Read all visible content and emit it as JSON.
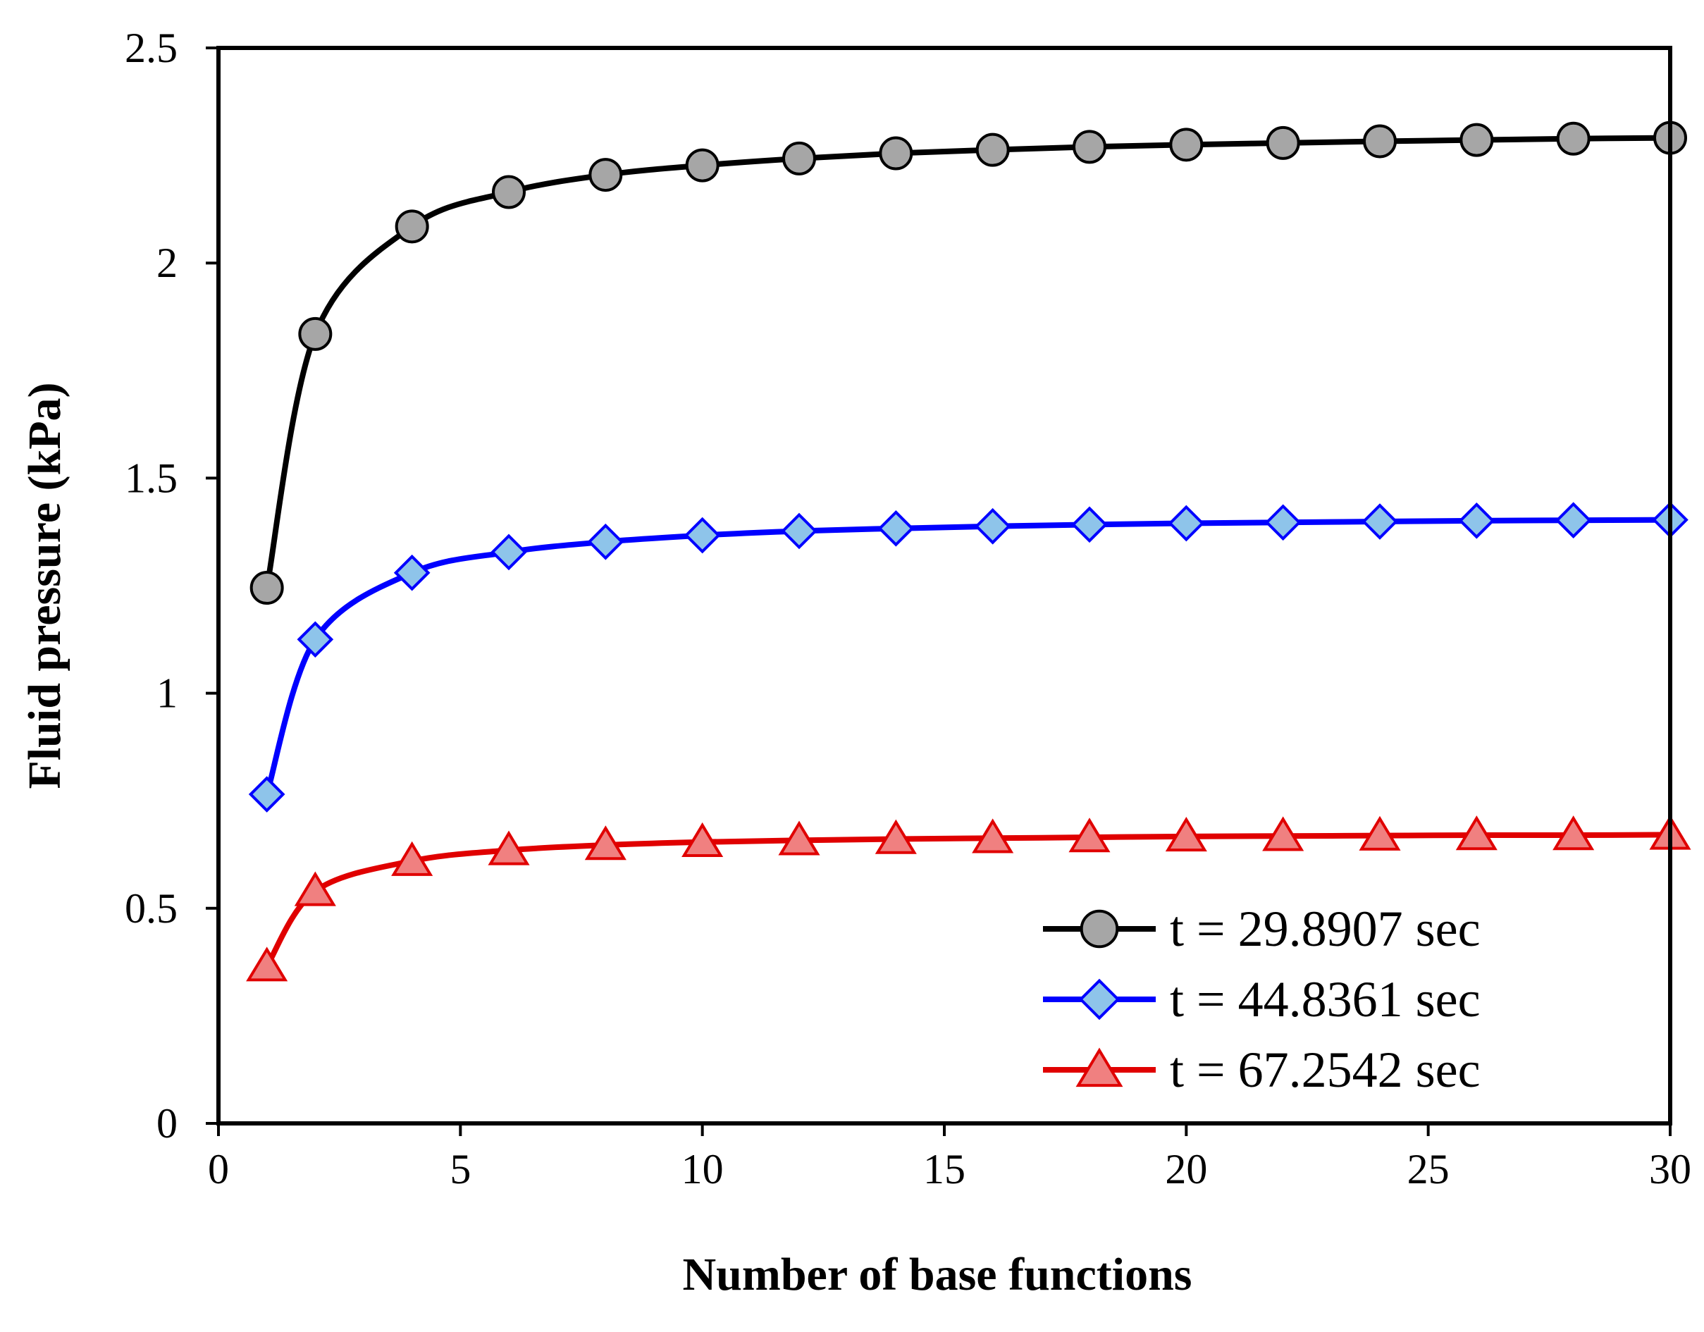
{
  "chart_data": {
    "type": "line",
    "title": "",
    "xlabel": "Number of base functions",
    "ylabel": "Fluid pressure (kPa)",
    "xlim": [
      0,
      30
    ],
    "ylim": [
      0,
      2.5
    ],
    "xticks": [
      0,
      5,
      10,
      15,
      20,
      25,
      30
    ],
    "xtick_labels": [
      "0",
      "5",
      "10",
      "15",
      "20",
      "25",
      "30"
    ],
    "yticks": [
      0,
      0.5,
      1,
      1.5,
      2,
      2.5
    ],
    "ytick_labels": [
      "0",
      "0.5",
      "1",
      "1.5",
      "2",
      "2.5"
    ],
    "grid": false,
    "legend_position": "bottom-right",
    "x": [
      1,
      2,
      4,
      6,
      8,
      10,
      12,
      14,
      16,
      18,
      20,
      22,
      24,
      26,
      28,
      30
    ],
    "series": [
      {
        "name": "t = 29.8907 sec",
        "marker": "circle",
        "line_color": "#000000",
        "marker_fill": "#a6a6a6",
        "marker_edge": "#000000",
        "values": [
          1.245,
          1.835,
          2.085,
          2.165,
          2.205,
          2.227,
          2.243,
          2.255,
          2.263,
          2.27,
          2.275,
          2.279,
          2.283,
          2.286,
          2.289,
          2.291
        ]
      },
      {
        "name": "t = 44.8361 sec",
        "marker": "diamond",
        "line_color": "#0000ff",
        "marker_fill": "#8ec4ea",
        "marker_edge": "#0000ff",
        "values": [
          0.765,
          1.125,
          1.28,
          1.328,
          1.352,
          1.367,
          1.377,
          1.383,
          1.388,
          1.392,
          1.395,
          1.397,
          1.399,
          1.401,
          1.402,
          1.403
        ]
      },
      {
        "name": "t = 67.2542 sec",
        "marker": "triangle",
        "line_color": "#e00000",
        "marker_fill": "#f08080",
        "marker_edge": "#e00000",
        "values": [
          0.365,
          0.54,
          0.61,
          0.635,
          0.647,
          0.654,
          0.658,
          0.661,
          0.663,
          0.665,
          0.667,
          0.668,
          0.669,
          0.67,
          0.67,
          0.671
        ]
      }
    ]
  }
}
